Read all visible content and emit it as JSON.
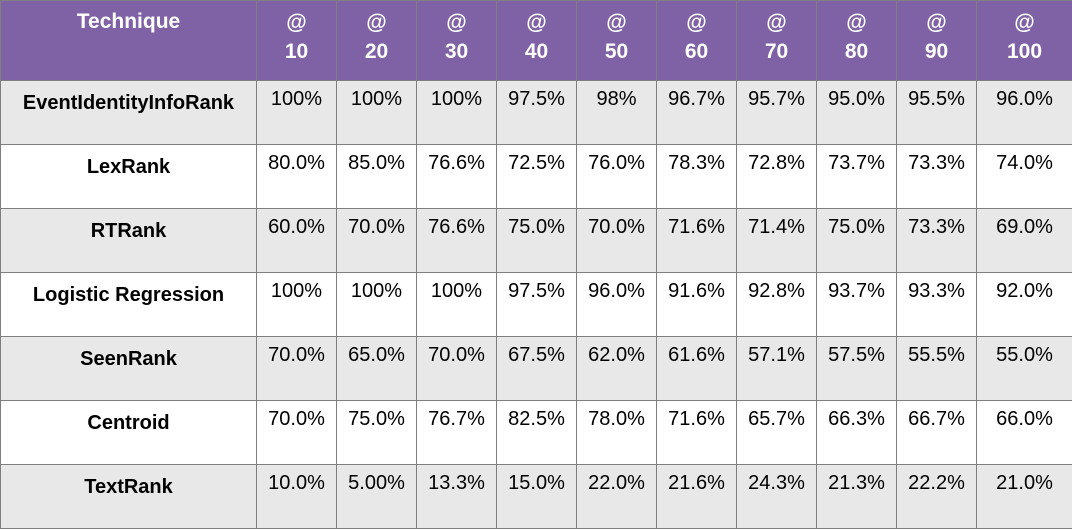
{
  "chart_data": {
    "type": "table",
    "header_label": "Technique",
    "at_symbol": "@",
    "columns": [
      "10",
      "20",
      "30",
      "40",
      "50",
      "60",
      "70",
      "80",
      "90",
      "100"
    ],
    "rows": [
      {
        "name": "EventIdentityInfoRank",
        "values": [
          "100%",
          "100%",
          "100%",
          "97.5%",
          "98%",
          "96.7%",
          "95.7%",
          "95.0%",
          "95.5%",
          "96.0%"
        ]
      },
      {
        "name": "LexRank",
        "values": [
          "80.0%",
          "85.0%",
          "76.6%",
          "72.5%",
          "76.0%",
          "78.3%",
          "72.8%",
          "73.7%",
          "73.3%",
          "74.0%"
        ]
      },
      {
        "name": "RTRank",
        "values": [
          "60.0%",
          "70.0%",
          "76.6%",
          "75.0%",
          "70.0%",
          "71.6%",
          "71.4%",
          "75.0%",
          "73.3%",
          "69.0%"
        ]
      },
      {
        "name": "Logistic Regression",
        "values": [
          "100%",
          "100%",
          "100%",
          "97.5%",
          "96.0%",
          "91.6%",
          "92.8%",
          "93.7%",
          "93.3%",
          "92.0%"
        ]
      },
      {
        "name": "SeenRank",
        "values": [
          "70.0%",
          "65.0%",
          "70.0%",
          "67.5%",
          "62.0%",
          "61.6%",
          "57.1%",
          "57.5%",
          "55.5%",
          "55.0%"
        ]
      },
      {
        "name": "Centroid",
        "values": [
          "70.0%",
          "75.0%",
          "76.7%",
          "82.5%",
          "78.0%",
          "71.6%",
          "65.7%",
          "66.3%",
          "66.7%",
          "66.0%"
        ]
      },
      {
        "name": "TextRank",
        "values": [
          "10.0%",
          "5.00%",
          "13.3%",
          "15.0%",
          "22.0%",
          "21.6%",
          "24.3%",
          "21.3%",
          "22.2%",
          "21.0%"
        ]
      }
    ],
    "colors": {
      "header_bg": "#7f62a6",
      "header_text": "#ffffff",
      "row_shade": "#e8e8e8",
      "row_plain": "#ffffff",
      "border": "#7f7f7f"
    }
  }
}
